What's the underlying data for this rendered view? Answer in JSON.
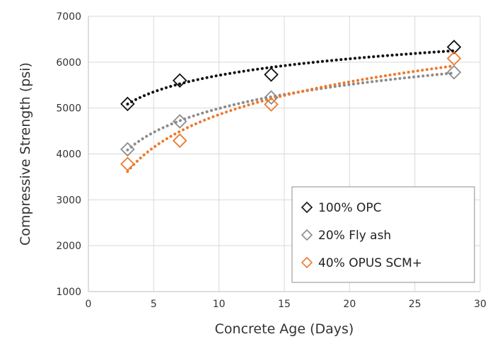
{
  "chart_data": {
    "type": "scatter",
    "title": "",
    "xlabel": "Concrete Age (Days)",
    "ylabel": "Compressive Strength (psi)",
    "xlim": [
      0,
      30
    ],
    "ylim": [
      1000,
      7000
    ],
    "x_ticks": [
      0,
      5,
      10,
      15,
      20,
      25,
      30
    ],
    "y_ticks": [
      1000,
      2000,
      3000,
      4000,
      5000,
      6000,
      7000
    ],
    "grid": true,
    "legend_position": "bottom-right",
    "trendline": "logarithmic (dotted)",
    "series": [
      {
        "name": "100% OPC",
        "color": "#111111",
        "marker": "diamond-open",
        "x": [
          3,
          7,
          14,
          28
        ],
        "y": [
          5090,
          5600,
          5730,
          6330
        ]
      },
      {
        "name": "20% Fly ash",
        "color": "#8c8c8c",
        "marker": "diamond-open",
        "x": [
          3,
          7,
          14,
          28
        ],
        "y": [
          4100,
          4710,
          5230,
          5780
        ]
      },
      {
        "name": "40% OPUS SCM+",
        "color": "#ec7a2e",
        "marker": "diamond-open",
        "x": [
          3,
          7,
          14,
          28
        ],
        "y": [
          3780,
          4290,
          5080,
          6080
        ]
      }
    ]
  }
}
